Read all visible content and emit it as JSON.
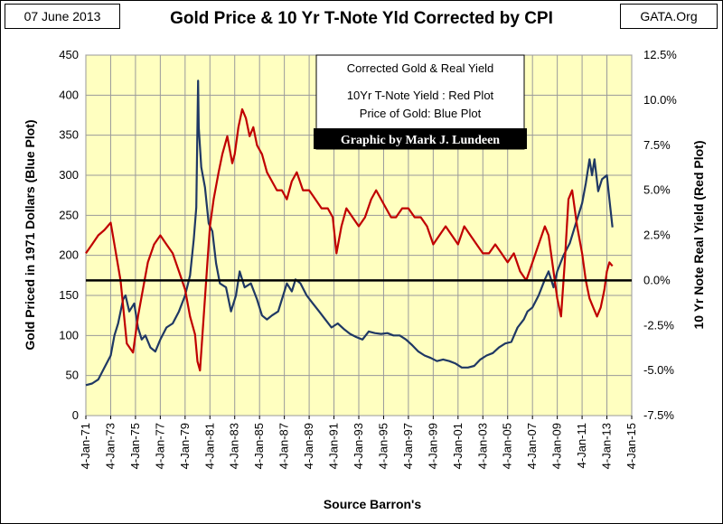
{
  "header": {
    "date": "07 June 2013",
    "title": "Gold Price & 10 Yr T-Note Yld Corrected by CPI",
    "source": "GATA.Org"
  },
  "chart_data": {
    "type": "line",
    "title": "Gold Price & 10 Yr T-Note Yld Corrected by CPI",
    "xlabel": "Source Barron's",
    "ylabel": "Gold Priced in 1971 Dollars  (Blue Plot)",
    "y2label": "10 Yr Note  Real Yield  (Red Plot)",
    "x_ticks": [
      "4-Jan-71",
      "4-Jan-73",
      "4-Jan-75",
      "4-Jan-77",
      "4-Jan-79",
      "4-Jan-81",
      "4-Jan-83",
      "4-Jan-85",
      "4-Jan-87",
      "4-Jan-89",
      "4-Jan-91",
      "4-Jan-93",
      "4-Jan-95",
      "4-Jan-97",
      "4-Jan-99",
      "4-Jan-01",
      "4-Jan-03",
      "4-Jan-05",
      "4-Jan-07",
      "4-Jan-09",
      "4-Jan-11",
      "4-Jan-13",
      "4-Jan-15"
    ],
    "y_ticks": [
      "0",
      "50",
      "100",
      "150",
      "200",
      "250",
      "300",
      "350",
      "400",
      "450"
    ],
    "y2_ticks": [
      "12.5%",
      "10.0%",
      "7.5%",
      "5.0%",
      "2.5%",
      "0.0%",
      "-2.5%",
      "-5.0%",
      "-7.5%"
    ],
    "xlim": [
      1971,
      2015
    ],
    "ylim": [
      0,
      450
    ],
    "y2lim": [
      -7.5,
      12.5
    ],
    "grid": true,
    "background": "#ffffc0",
    "legend_box": {
      "line1": "Corrected Gold & Real Yield",
      "line2": "10Yr T-Note Yield : Red Plot",
      "line3": "Price of Gold: Blue Plot",
      "credit": "Graphic by Mark J. Lundeen"
    },
    "series": [
      {
        "color": "#1f3864",
        "axis": "left",
        "x": [
          1971.0,
          1971.5,
          1972.0,
          1972.5,
          1973.0,
          1973.3,
          1973.6,
          1974.0,
          1974.2,
          1974.5,
          1974.9,
          1975.2,
          1975.5,
          1975.8,
          1976.2,
          1976.6,
          1977.0,
          1977.5,
          1978.0,
          1978.5,
          1979.0,
          1979.4,
          1979.7,
          1979.9,
          1980.05,
          1980.1,
          1980.3,
          1980.6,
          1980.9,
          1981.2,
          1981.5,
          1981.8,
          1982.3,
          1982.7,
          1983.1,
          1983.4,
          1983.8,
          1984.3,
          1984.8,
          1985.2,
          1985.6,
          1986.0,
          1986.5,
          1986.9,
          1987.2,
          1987.6,
          1987.9,
          1988.3,
          1988.8,
          1989.3,
          1989.8,
          1990.3,
          1990.8,
          1991.3,
          1991.8,
          1992.3,
          1992.8,
          1993.3,
          1993.8,
          1994.3,
          1994.8,
          1995.3,
          1995.8,
          1996.3,
          1996.8,
          1997.3,
          1997.8,
          1998.3,
          1998.8,
          1999.3,
          1999.8,
          2000.3,
          2000.8,
          2001.3,
          2001.8,
          2002.3,
          2002.8,
          2003.3,
          2003.8,
          2004.3,
          2004.8,
          2005.3,
          2005.8,
          2006.3,
          2006.6,
          2007.0,
          2007.5,
          2008.0,
          2008.3,
          2008.7,
          2009.0,
          2009.5,
          2010.0,
          2010.5,
          2011.0,
          2011.3,
          2011.6,
          2011.8,
          2012.0,
          2012.3,
          2012.6,
          2013.0,
          2013.2,
          2013.45
        ],
        "y": [
          38,
          40,
          45,
          60,
          75,
          100,
          115,
          145,
          150,
          130,
          140,
          110,
          95,
          100,
          85,
          80,
          95,
          110,
          115,
          130,
          150,
          175,
          220,
          260,
          418,
          360,
          310,
          285,
          240,
          230,
          190,
          165,
          160,
          130,
          150,
          180,
          160,
          165,
          145,
          125,
          120,
          125,
          130,
          150,
          165,
          155,
          170,
          165,
          150,
          140,
          130,
          120,
          110,
          115,
          108,
          102,
          98,
          95,
          105,
          103,
          102,
          103,
          100,
          100,
          95,
          88,
          80,
          75,
          72,
          68,
          70,
          68,
          65,
          60,
          60,
          62,
          70,
          75,
          78,
          85,
          90,
          92,
          110,
          120,
          130,
          135,
          150,
          170,
          180,
          160,
          180,
          200,
          215,
          240,
          265,
          290,
          320,
          300,
          320,
          280,
          295,
          300,
          270,
          235
        ],
        "name": ""
      },
      {
        "color": "#c00000",
        "axis": "right",
        "x": [
          1971.0,
          1971.5,
          1972.0,
          1972.5,
          1973.0,
          1973.3,
          1973.8,
          1974.3,
          1974.8,
          1975.2,
          1975.6,
          1976.0,
          1976.5,
          1977.0,
          1977.5,
          1978.0,
          1978.5,
          1979.0,
          1979.4,
          1979.8,
          1980.0,
          1980.2,
          1980.5,
          1980.8,
          1981.0,
          1981.3,
          1981.7,
          1982.0,
          1982.4,
          1982.8,
          1983.0,
          1983.3,
          1983.6,
          1983.9,
          1984.2,
          1984.5,
          1984.8,
          1985.2,
          1985.6,
          1986.0,
          1986.4,
          1986.8,
          1987.2,
          1987.6,
          1988.0,
          1988.5,
          1989.0,
          1989.5,
          1990.0,
          1990.5,
          1990.9,
          1991.2,
          1991.6,
          1992.0,
          1992.5,
          1993.0,
          1993.5,
          1994.0,
          1994.4,
          1994.8,
          1995.2,
          1995.6,
          1996.0,
          1996.5,
          1997.0,
          1997.5,
          1998.0,
          1998.5,
          1999.0,
          1999.5,
          2000.0,
          2000.5,
          2001.0,
          2001.5,
          2002.0,
          2002.5,
          2003.0,
          2003.5,
          2004.0,
          2004.5,
          2005.0,
          2005.5,
          2006.0,
          2006.5,
          2007.0,
          2007.5,
          2008.0,
          2008.3,
          2008.6,
          2009.0,
          2009.3,
          2009.6,
          2009.9,
          2010.2,
          2010.6,
          2011.0,
          2011.3,
          2011.6,
          2011.9,
          2012.2,
          2012.5,
          2012.8,
          2013.0,
          2013.2,
          2013.45
        ],
        "y": [
          1.5,
          2.0,
          2.5,
          2.8,
          3.2,
          2.0,
          0.0,
          -3.5,
          -4.0,
          -2.0,
          -0.5,
          1.0,
          2.0,
          2.5,
          2.0,
          1.5,
          0.5,
          -0.5,
          -2.0,
          -3.0,
          -4.5,
          -5.0,
          -2.0,
          1.0,
          3.0,
          4.5,
          6.0,
          7.0,
          8.0,
          6.5,
          7.0,
          8.5,
          9.5,
          9.0,
          8.0,
          8.5,
          7.5,
          7.0,
          6.0,
          5.5,
          5.0,
          5.0,
          4.5,
          5.5,
          6.0,
          5.0,
          5.0,
          4.5,
          4.0,
          4.0,
          3.5,
          1.5,
          3.0,
          4.0,
          3.5,
          3.0,
          3.5,
          4.5,
          5.0,
          4.5,
          4.0,
          3.5,
          3.5,
          4.0,
          4.0,
          3.5,
          3.5,
          3.0,
          2.0,
          2.5,
          3.0,
          2.5,
          2.0,
          3.0,
          2.5,
          2.0,
          1.5,
          1.5,
          2.0,
          1.5,
          1.0,
          1.5,
          0.5,
          0.0,
          1.0,
          2.0,
          3.0,
          2.5,
          1.0,
          -1.0,
          -2.0,
          1.0,
          4.5,
          5.0,
          3.0,
          1.5,
          0.0,
          -1.0,
          -1.5,
          -2.0,
          -1.5,
          -0.5,
          0.5,
          1.0,
          0.8
        ],
        "name": ""
      }
    ]
  }
}
